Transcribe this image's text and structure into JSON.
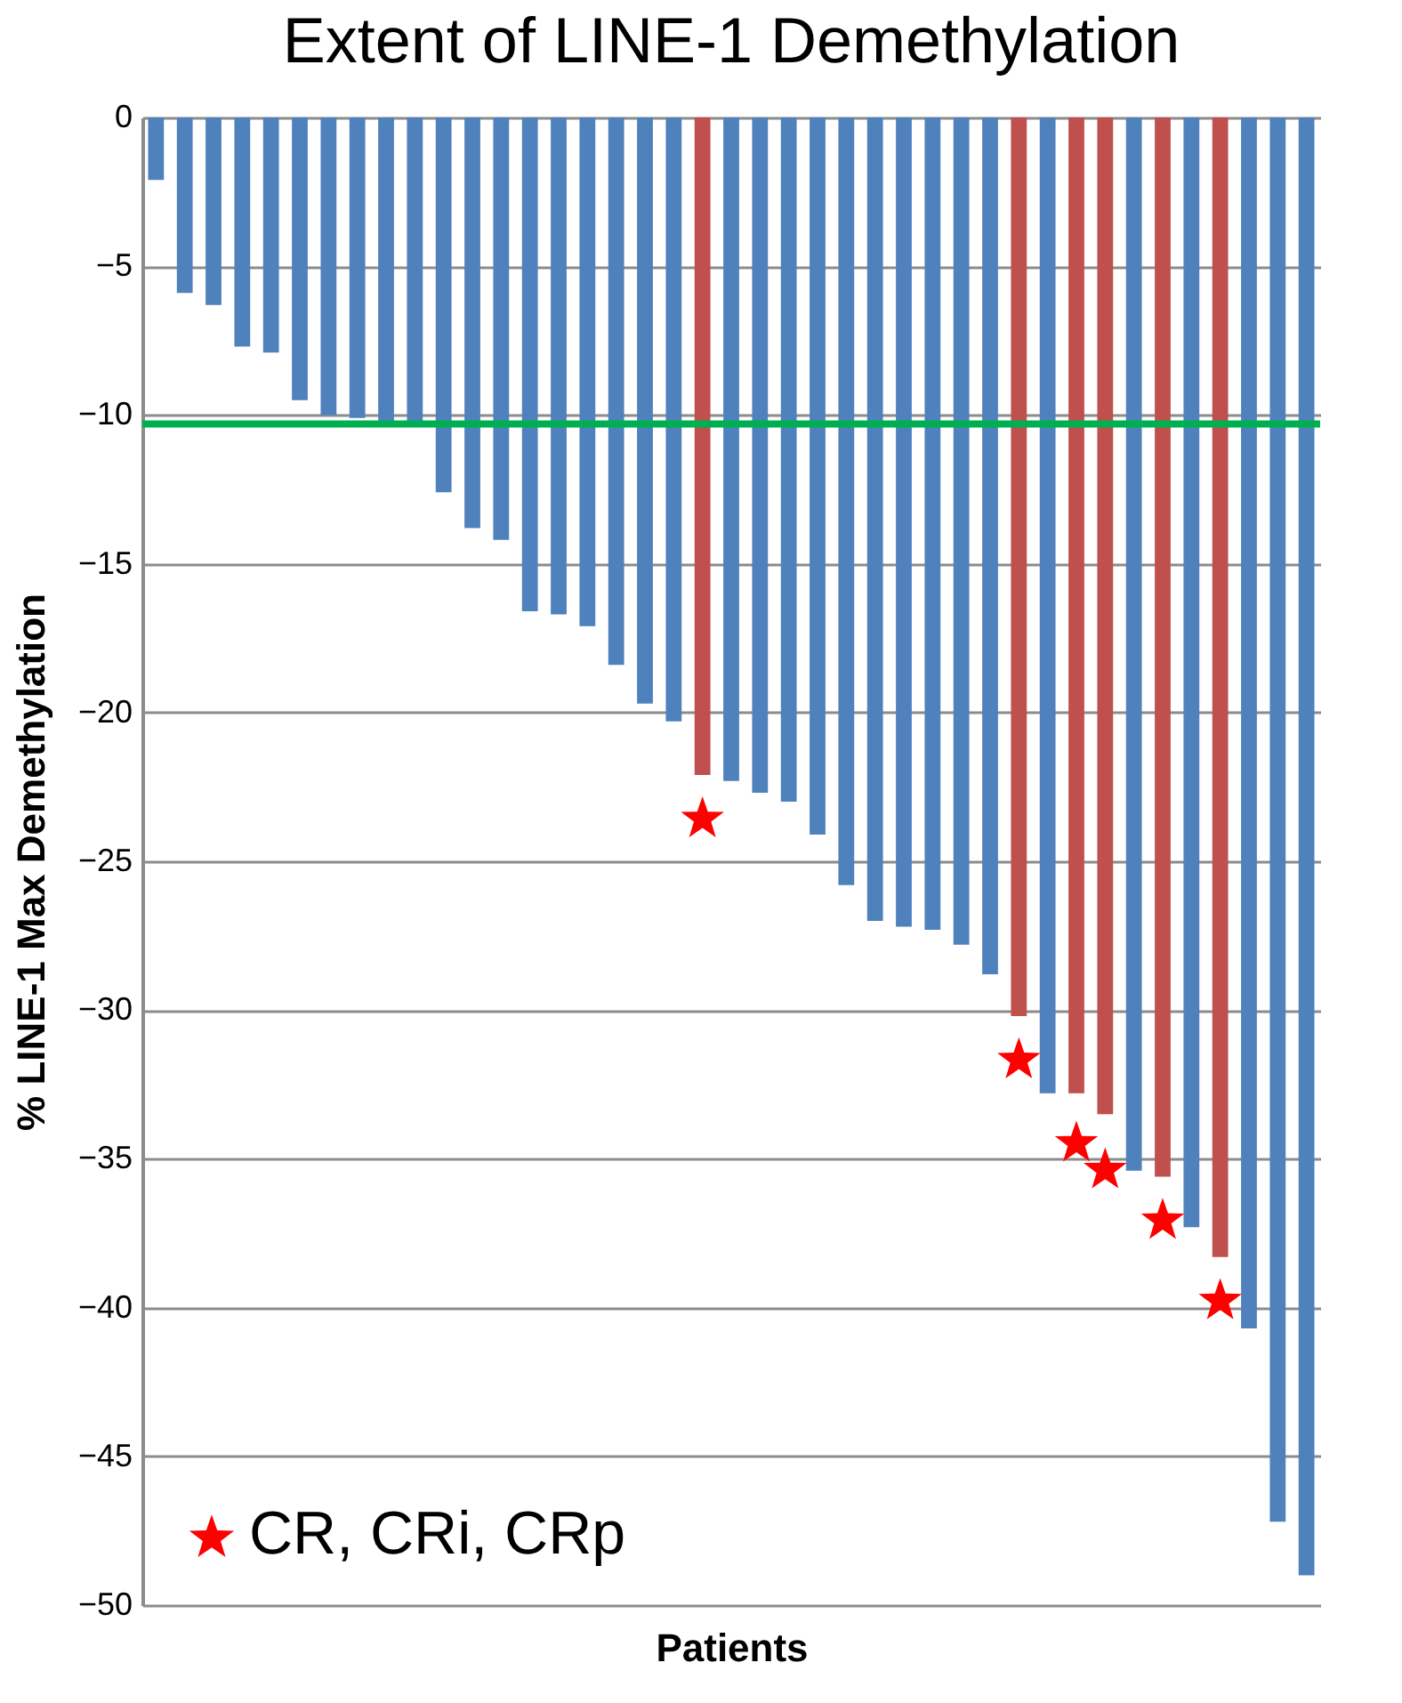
{
  "chart_data": {
    "type": "bar",
    "title": "Extent of LINE-1 Demethylation",
    "xlabel": "Patients",
    "ylabel": "% LINE-1 Max Demethylation",
    "categories": [
      null,
      null,
      null,
      null,
      null,
      null,
      null,
      null,
      null,
      null,
      null,
      null,
      null,
      null,
      null,
      null,
      null,
      null,
      null,
      null,
      null,
      null,
      null,
      null,
      null,
      null,
      null,
      null,
      null,
      null,
      null,
      null,
      null,
      null,
      null,
      null,
      null,
      null,
      null,
      null,
      null
    ],
    "series": [
      {
        "colors": [
          "#4f81bd",
          "#4f81bd",
          "#4f81bd",
          "#4f81bd",
          "#4f81bd",
          "#4f81bd",
          "#4f81bd",
          "#4f81bd",
          "#4f81bd",
          "#4f81bd",
          "#4f81bd",
          "#4f81bd",
          "#4f81bd",
          "#4f81bd",
          "#4f81bd",
          "#4f81bd",
          "#4f81bd",
          "#4f81bd",
          "#4f81bd",
          "#c0504d",
          "#4f81bd",
          "#4f81bd",
          "#4f81bd",
          "#4f81bd",
          "#4f81bd",
          "#4f81bd",
          "#4f81bd",
          "#4f81bd",
          "#4f81bd",
          "#4f81bd",
          "#c0504d",
          "#4f81bd",
          "#c0504d",
          "#c0504d",
          "#4f81bd",
          "#c0504d",
          "#4f81bd",
          "#c0504d",
          "#4f81bd",
          "#4f81bd",
          "#4f81bd"
        ],
        "values": [
          -2.1,
          -5.9,
          -6.3,
          -7.7,
          -7.9,
          -9.5,
          -10.0,
          -10.1,
          -10.2,
          -10.2,
          -12.6,
          -13.8,
          -14.2,
          -16.6,
          -16.7,
          -17.1,
          -18.4,
          -19.7,
          -20.3,
          -22.1,
          -22.3,
          -22.7,
          -23.0,
          -24.1,
          -25.8,
          -27.0,
          -27.2,
          -27.3,
          -27.8,
          -28.8,
          -30.2,
          -32.8,
          -32.8,
          -33.5,
          -35.4,
          -35.6,
          -37.3,
          -38.3,
          -40.7,
          -47.2,
          -49.0
        ]
      },
      {
        "type": "scatter",
        "name": "CR, CRi, CRp",
        "color": "#ff0000",
        "values": [
          null,
          null,
          null,
          null,
          null,
          null,
          null,
          null,
          null,
          null,
          null,
          null,
          null,
          null,
          null,
          null,
          null,
          null,
          null,
          -23.5,
          null,
          null,
          null,
          null,
          null,
          null,
          null,
          null,
          null,
          null,
          -31.6,
          null,
          -34.4,
          -35.3,
          null,
          -37.0,
          null,
          -39.7,
          null,
          null,
          null
        ]
      }
    ],
    "ylim": [
      -50,
      0
    ],
    "yticks": [
      0,
      -5,
      -10,
      -15,
      -20,
      -25,
      -30,
      -35,
      -40,
      -45,
      -50
    ],
    "grid": "y",
    "marker": "star",
    "legend": "bottom left",
    "ref_lines": [
      {
        "axis": "y",
        "value": -10.3,
        "color": "#00b050"
      }
    ]
  }
}
